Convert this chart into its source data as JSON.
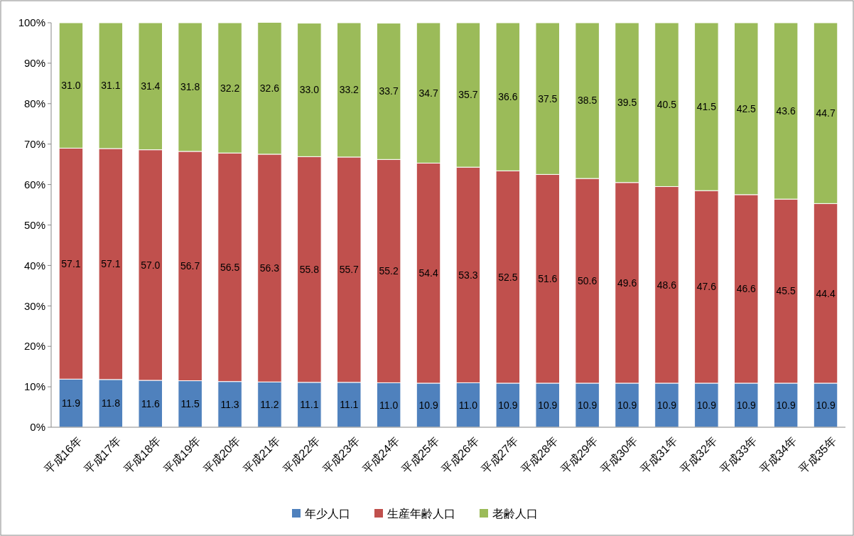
{
  "chart_data": {
    "type": "bar",
    "stacked": true,
    "categories": [
      "平成16年",
      "平成17年",
      "平成18年",
      "平成19年",
      "平成20年",
      "平成21年",
      "平成22年",
      "平成23年",
      "平成24年",
      "平成25年",
      "平成26年",
      "平成27年",
      "平成28年",
      "平成29年",
      "平成30年",
      "平成31年",
      "平成32年",
      "平成33年",
      "平成34年",
      "平成35年"
    ],
    "series": [
      {
        "name": "年少人口",
        "color": "#4f81bd",
        "values": [
          11.9,
          11.8,
          11.6,
          11.5,
          11.3,
          11.2,
          11.1,
          11.1,
          11.0,
          10.9,
          11.0,
          10.9,
          10.9,
          10.9,
          10.9,
          10.9,
          10.9,
          10.9,
          10.9,
          10.9
        ],
        "value_labels": [
          "11.9",
          "11.8",
          "11.6",
          "11.5",
          "11.3",
          "11.2",
          "11.1",
          "11.1",
          "11.0",
          "10.9",
          "11.0",
          "10.9",
          "10.9",
          "10.9",
          "10.9",
          "10.9",
          "10.9",
          "10.9",
          "10.9",
          "10.9"
        ]
      },
      {
        "name": "生産年齢人口",
        "color": "#c0504d",
        "values": [
          57.1,
          57.1,
          57.0,
          56.7,
          56.5,
          56.3,
          55.8,
          55.7,
          55.2,
          54.4,
          53.3,
          52.5,
          51.6,
          50.6,
          49.6,
          48.6,
          47.6,
          46.6,
          45.5,
          44.4
        ],
        "value_labels": [
          "57.1",
          "57.1",
          "57.0",
          "56.7",
          "56.5",
          "56.3",
          "55.8",
          "55.7",
          "55.2",
          "54.4",
          "53.3",
          "52.5",
          "51.6",
          "50.6",
          "49.6",
          "48.6",
          "47.6",
          "46.6",
          "45.5",
          "44.4"
        ]
      },
      {
        "name": "老齢人口",
        "color": "#9bbb59",
        "values": [
          31.0,
          31.1,
          31.4,
          31.8,
          32.2,
          32.6,
          33.0,
          33.2,
          33.7,
          34.7,
          35.7,
          36.6,
          37.5,
          38.5,
          39.5,
          40.5,
          41.5,
          42.5,
          43.6,
          44.7
        ],
        "value_labels": [
          "31.0",
          "31.1",
          "31.4",
          "31.8",
          "32.2",
          "32.6",
          "33.0",
          "33.2",
          "33.7",
          "34.7",
          "35.7",
          "36.6",
          "37.5",
          "38.5",
          "39.5",
          "40.5",
          "41.5",
          "42.5",
          "43.6",
          "44.7"
        ]
      }
    ],
    "ylim": [
      0,
      100
    ],
    "yticks": [
      {
        "value": 0,
        "label": "0%"
      },
      {
        "value": 10,
        "label": "10%"
      },
      {
        "value": 20,
        "label": "20%"
      },
      {
        "value": 30,
        "label": "30%"
      },
      {
        "value": 40,
        "label": "40%"
      },
      {
        "value": 50,
        "label": "50%"
      },
      {
        "value": 60,
        "label": "60%"
      },
      {
        "value": 70,
        "label": "70%"
      },
      {
        "value": 80,
        "label": "80%"
      },
      {
        "value": 90,
        "label": "90%"
      },
      {
        "value": 100,
        "label": "100%"
      }
    ],
    "legend": "bottom",
    "grid": false
  }
}
